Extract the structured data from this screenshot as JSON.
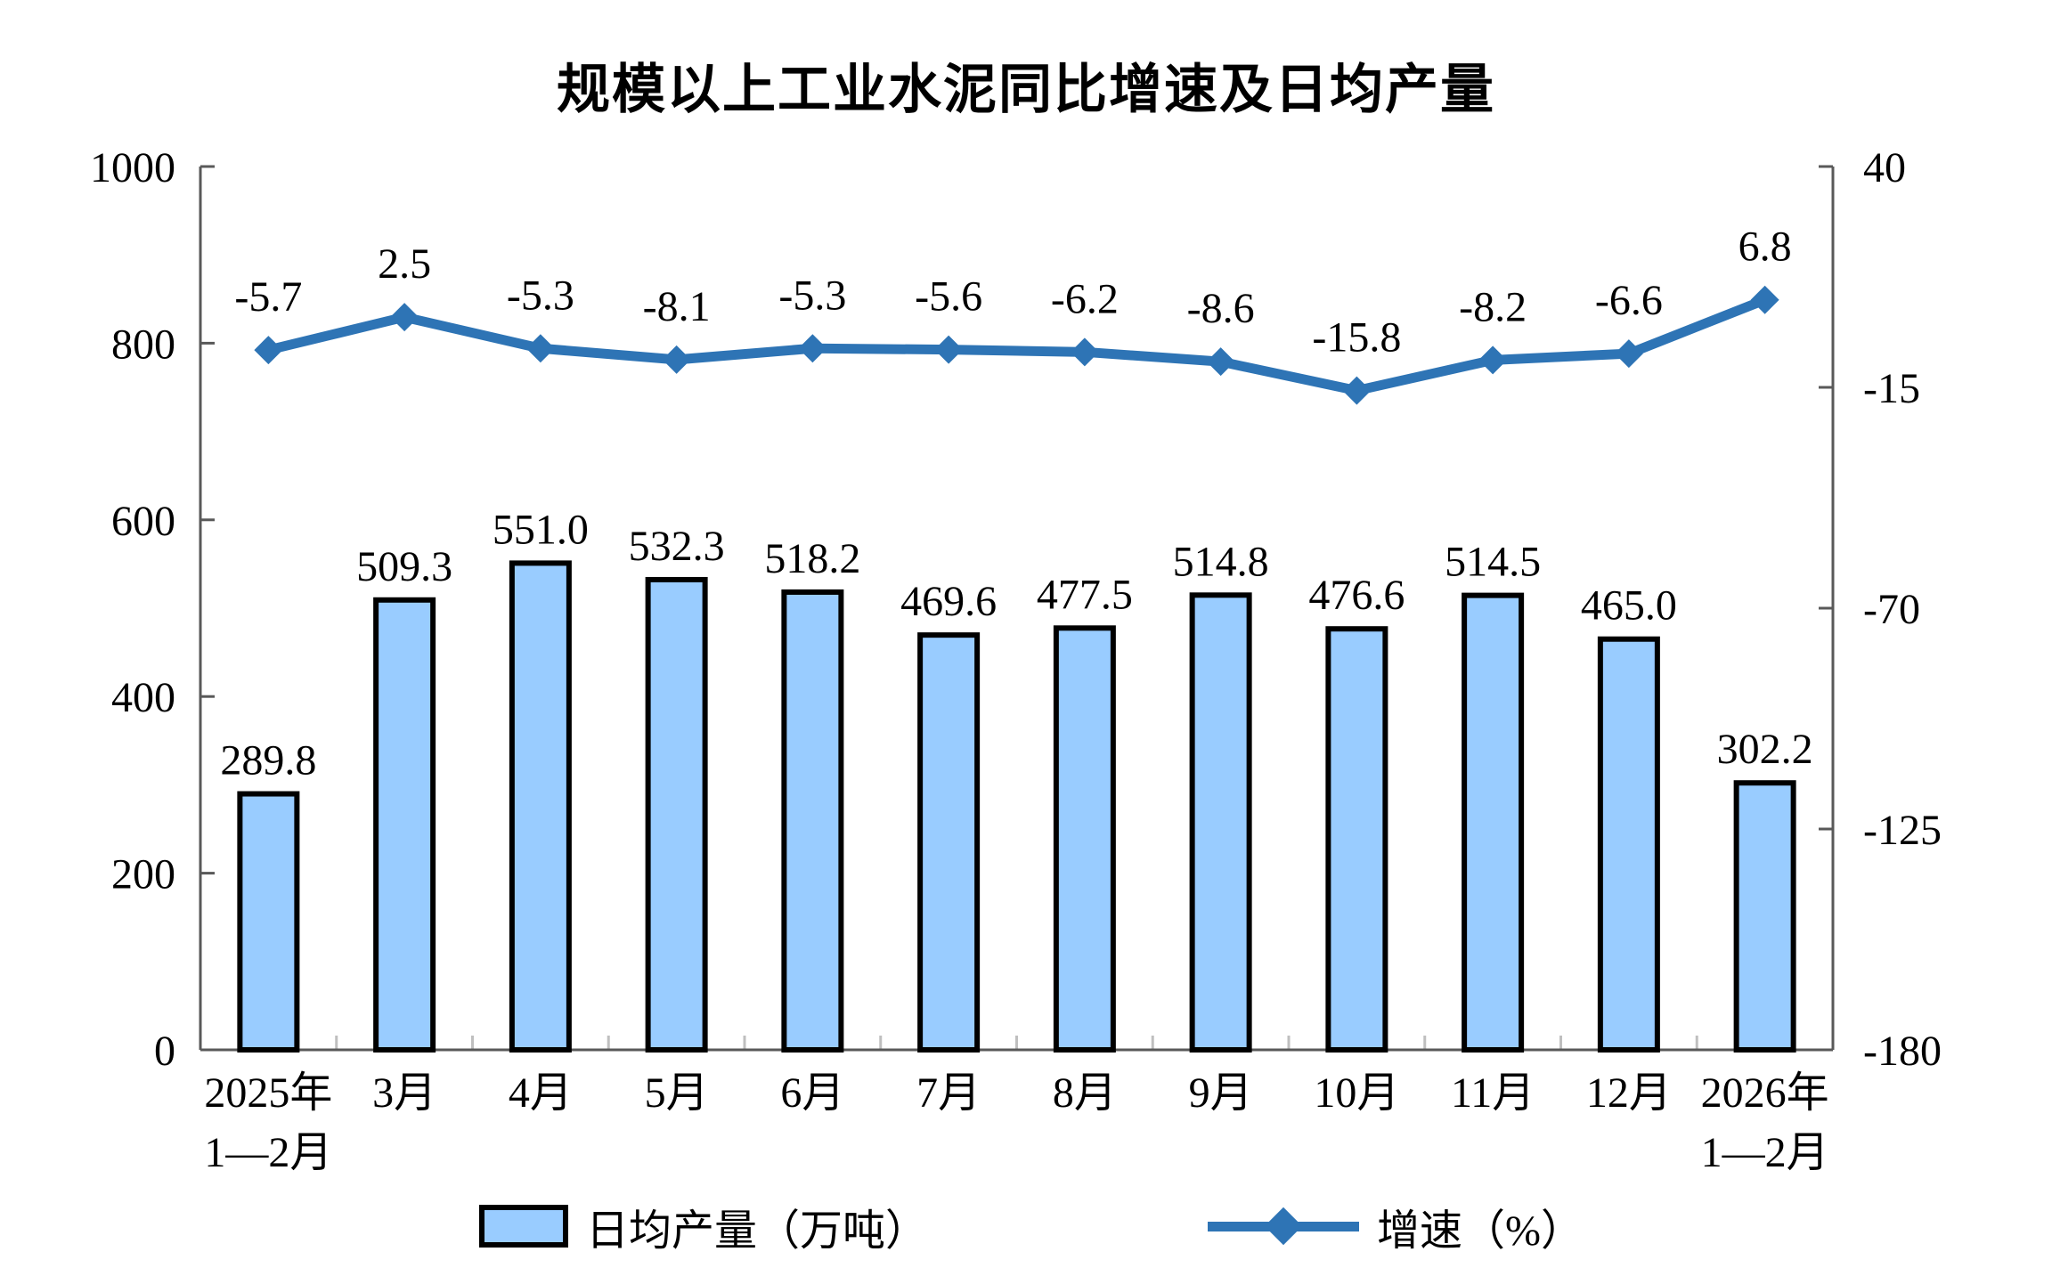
{
  "title": "规模以上工业水泥同比增速及日均产量",
  "legend": {
    "bar_label": "日均产量（万吨）",
    "line_label": "增速（%）"
  },
  "colors": {
    "bar_fill": "#99CCFF",
    "bar_stroke": "#000000",
    "line": "#2E74B5",
    "axis": "#595959",
    "minor_tick": "#BFBFBF",
    "text": "#000000",
    "background": "#FFFFFF"
  },
  "chart_data": {
    "type": "bar",
    "combo": "bar+line, dual y-axis",
    "title": "规模以上工业水泥同比增速及日均产量",
    "categories": [
      "2025年 1—2月",
      "3月",
      "4月",
      "5月",
      "6月",
      "7月",
      "8月",
      "9月",
      "10月",
      "11月",
      "12月",
      "2026年 1—2月"
    ],
    "categories_two_line": [
      [
        "2025年",
        "1—2月"
      ],
      [
        "3月"
      ],
      [
        "4月"
      ],
      [
        "5月"
      ],
      [
        "6月"
      ],
      [
        "7月"
      ],
      [
        "8月"
      ],
      [
        "9月"
      ],
      [
        "10月"
      ],
      [
        "11月"
      ],
      [
        "12月"
      ],
      [
        "2026年",
        "1—2月"
      ]
    ],
    "series": [
      {
        "name": "日均产量（万吨）",
        "type": "bar",
        "axis": "left",
        "values": [
          289.8,
          509.3,
          551.0,
          532.3,
          518.2,
          469.6,
          477.5,
          514.8,
          476.6,
          514.5,
          465.0,
          302.2
        ],
        "labels": [
          "289.8",
          "509.3",
          "551.0",
          "532.3",
          "518.2",
          "469.6",
          "477.5",
          "514.8",
          "476.6",
          "514.5",
          "465.0",
          "302.2"
        ]
      },
      {
        "name": "增速（%）",
        "type": "line",
        "axis": "right",
        "values": [
          -5.7,
          2.5,
          -5.3,
          -8.1,
          -5.3,
          -5.6,
          -6.2,
          -8.6,
          -15.8,
          -8.2,
          -6.6,
          6.8
        ],
        "labels": [
          "-5.7",
          "2.5",
          "-5.3",
          "-8.1",
          "-5.3",
          "-5.6",
          "-6.2",
          "-8.6",
          "-15.8",
          "-8.2",
          "-6.6",
          "6.8"
        ]
      }
    ],
    "left_axis": {
      "min": 0,
      "max": 1000,
      "ticks": [
        1000,
        800,
        600,
        400,
        200,
        0
      ]
    },
    "right_axis": {
      "min": -180,
      "max": 40,
      "ticks": [
        40,
        -15,
        -70,
        -125,
        -180
      ]
    },
    "grid": false,
    "legend_position": "bottom"
  }
}
